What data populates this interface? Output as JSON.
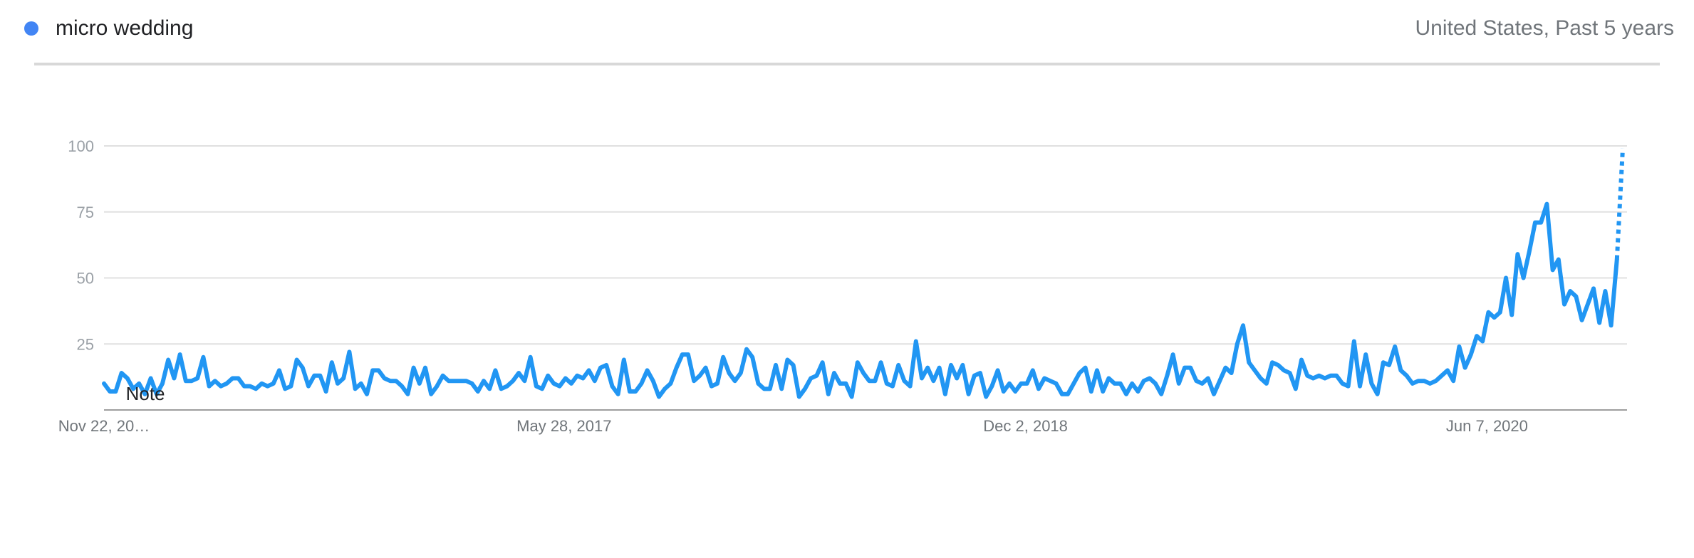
{
  "header": {
    "legend_label": "micro wedding",
    "scope_label": "United States, Past 5 years"
  },
  "colors": {
    "series": "#2196f3",
    "legend_dot": "#4285f4",
    "grid": "#e0e0e0",
    "axis": "#9e9e9e"
  },
  "chart_data": {
    "type": "line",
    "title": "",
    "xlabel": "",
    "ylabel": "",
    "ylim": [
      0,
      100
    ],
    "y_ticks": [
      100,
      75,
      50,
      25
    ],
    "grid": true,
    "x_ticks": [
      {
        "label": "Nov 22, 20…",
        "index": 0
      },
      {
        "label": "May 28, 2017",
        "index": 79
      },
      {
        "label": "Dec 2, 2018",
        "index": 158
      },
      {
        "label": "Jun 7, 2020",
        "index": 237
      }
    ],
    "annotation": {
      "label": "Note",
      "index": 3
    },
    "partial_last_point": true,
    "series": [
      {
        "name": "micro wedding",
        "values": [
          10,
          7,
          7,
          14,
          12,
          8,
          10,
          6,
          12,
          6,
          10,
          19,
          12,
          21,
          11,
          11,
          12,
          20,
          9,
          11,
          9,
          10,
          12,
          12,
          9,
          9,
          8,
          10,
          9,
          10,
          15,
          8,
          9,
          19,
          16,
          9,
          13,
          13,
          7,
          18,
          10,
          12,
          22,
          8,
          10,
          6,
          15,
          15,
          12,
          11,
          11,
          9,
          6,
          16,
          10,
          16,
          6,
          9,
          13,
          11,
          11,
          11,
          11,
          10,
          7,
          11,
          8,
          15,
          8,
          9,
          11,
          14,
          11,
          20,
          9,
          8,
          13,
          10,
          9,
          12,
          10,
          13,
          12,
          15,
          11,
          16,
          17,
          9,
          6,
          19,
          7,
          7,
          10,
          15,
          11,
          5,
          8,
          10,
          16,
          21,
          21,
          11,
          13,
          16,
          9,
          10,
          20,
          14,
          11,
          14,
          23,
          20,
          10,
          8,
          8,
          17,
          8,
          19,
          17,
          5,
          8,
          12,
          13,
          18,
          6,
          14,
          10,
          10,
          5,
          18,
          14,
          11,
          11,
          18,
          10,
          9,
          17,
          11,
          9,
          26,
          12,
          16,
          11,
          16,
          6,
          17,
          12,
          17,
          6,
          13,
          14,
          5,
          9,
          15,
          7,
          10,
          7,
          10,
          10,
          15,
          8,
          12,
          11,
          10,
          6,
          6,
          10,
          14,
          16,
          7,
          15,
          7,
          12,
          10,
          10,
          6,
          10,
          7,
          11,
          12,
          10,
          6,
          13,
          21,
          10,
          16,
          16,
          11,
          10,
          12,
          6,
          11,
          16,
          14,
          25,
          32,
          18,
          15,
          12,
          10,
          18,
          17,
          15,
          14,
          8,
          19,
          13,
          12,
          13,
          12,
          13,
          13,
          10,
          9,
          26,
          9,
          21,
          10,
          6,
          18,
          17,
          24,
          15,
          13,
          10,
          11,
          11,
          10,
          11,
          13,
          15,
          11,
          24,
          16,
          21,
          28,
          26,
          37,
          35,
          37,
          50,
          36,
          59,
          50,
          60,
          71,
          71,
          78,
          53,
          57,
          40,
          45,
          43,
          34,
          40,
          46,
          33,
          45,
          32,
          57,
          99
        ]
      }
    ]
  }
}
